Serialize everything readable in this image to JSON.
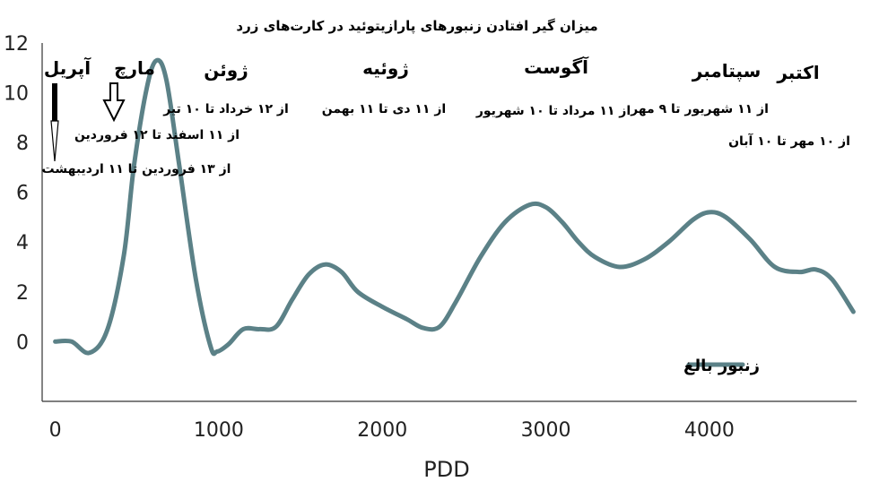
{
  "chart_data": {
    "type": "line",
    "title": "میزان گیر افتادن زنبورهای پارازیتوئید در کارت‌های زرد",
    "xlabel": "PDD",
    "ylabel": "",
    "xlim": [
      -80,
      4900
    ],
    "ylim": [
      -2.4,
      12
    ],
    "x_ticks": [
      "0",
      "1000",
      "2000",
      "3000",
      "4000"
    ],
    "y_ticks": [
      "12",
      "10",
      "8",
      "6",
      "4",
      "2",
      "0"
    ],
    "grid": false,
    "legend_position": "bottom-right",
    "colors": {
      "series": "#5b8187"
    },
    "series": [
      {
        "name": "زنبور بالغ",
        "x": [
          0,
          100,
          210,
          320,
          420,
          480,
          560,
          620,
          680,
          760,
          860,
          950,
          990,
          1060,
          1150,
          1250,
          1350,
          1450,
          1550,
          1650,
          1750,
          1850,
          2000,
          2150,
          2250,
          2350,
          2450,
          2600,
          2750,
          2900,
          3000,
          3100,
          3200,
          3300,
          3450,
          3600,
          3750,
          3900,
          4000,
          4100,
          4250,
          4400,
          4550,
          4650,
          4750,
          4880
        ],
        "y": [
          0,
          0,
          -0.45,
          0.5,
          3.5,
          7.0,
          10.2,
          11.3,
          10.5,
          7.0,
          2.5,
          -0.2,
          -0.4,
          -0.1,
          0.5,
          0.5,
          0.6,
          1.7,
          2.7,
          3.1,
          2.8,
          2.0,
          1.4,
          0.9,
          0.55,
          0.6,
          1.6,
          3.4,
          4.8,
          5.5,
          5.4,
          4.8,
          4.0,
          3.4,
          3.0,
          3.3,
          4.0,
          4.9,
          5.2,
          5.0,
          4.1,
          3.0,
          2.8,
          2.9,
          2.5,
          1.2
        ]
      }
    ],
    "annotations": {
      "months": [
        {
          "label": "آپریل",
          "x": 60
        },
        {
          "label": "مارچ",
          "x": 320
        },
        {
          "label": "ژوئن",
          "x": 1050
        },
        {
          "label": "ژوئیه",
          "x": 2050
        },
        {
          "label": "آگوست",
          "x": 3050
        },
        {
          "label": "سپتامبر",
          "x": 4250
        },
        {
          "label": "اکتبر",
          "x": 4700
        }
      ],
      "ranges": [
        "از ۱۲ خرداد تا ۱۰ تیر",
        "از ۱۱ اسفند تا ۱۲ فروردین",
        "از ۱۳ فروردین تا ۱۱ اردیبهشت",
        "از ۱۱ دی تا ۱۱ بهمن",
        "از ۱۱ مرداد تا ۱۰ شهریور",
        "از ۱۱ شهریور تا ۹ مهر",
        "از ۱۰ مهر تا ۱۰ آبان"
      ]
    }
  }
}
